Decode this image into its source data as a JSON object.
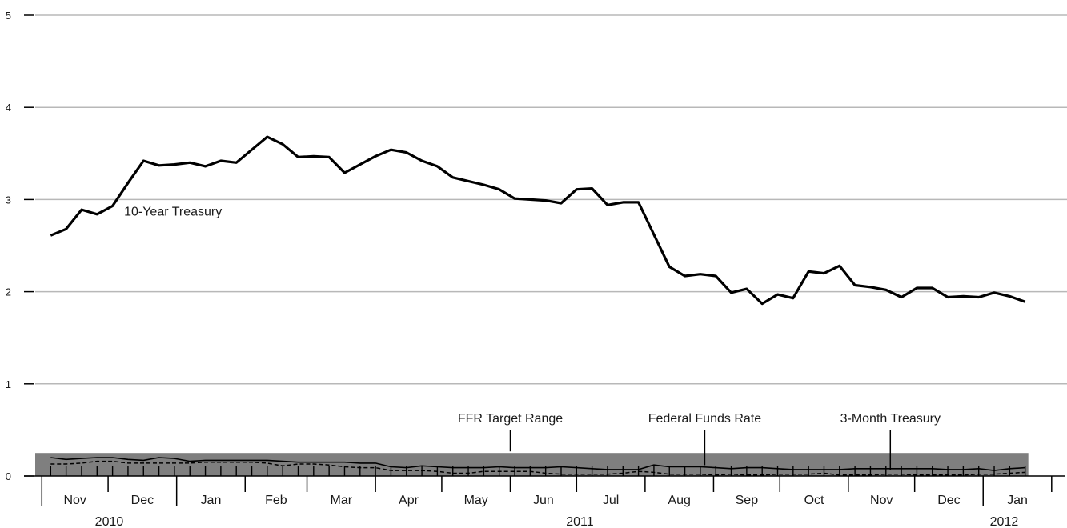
{
  "chart_data": {
    "type": "line",
    "title": "",
    "xlabel": "",
    "ylabel": "",
    "ylim": [
      0,
      5
    ],
    "yticks": [
      0,
      1,
      2,
      3,
      4,
      5
    ],
    "grid": true,
    "months": [
      {
        "label": "Nov",
        "year": 2010,
        "month": 11
      },
      {
        "label": "Dec",
        "year": 2010,
        "month": 12
      },
      {
        "label": "Jan",
        "year": 2011,
        "month": 1
      },
      {
        "label": "Feb",
        "year": 2011,
        "month": 2
      },
      {
        "label": "Mar",
        "year": 2011,
        "month": 3
      },
      {
        "label": "Apr",
        "year": 2011,
        "month": 4
      },
      {
        "label": "May",
        "year": 2011,
        "month": 5
      },
      {
        "label": "Jun",
        "year": 2011,
        "month": 6
      },
      {
        "label": "Jul",
        "year": 2011,
        "month": 7
      },
      {
        "label": "Aug",
        "year": 2011,
        "month": 8
      },
      {
        "label": "Sep",
        "year": 2011,
        "month": 9
      },
      {
        "label": "Oct",
        "year": 2011,
        "month": 10
      },
      {
        "label": "Nov",
        "year": 2011,
        "month": 11
      },
      {
        "label": "Dec",
        "year": 2011,
        "month": 12
      },
      {
        "label": "Jan",
        "year": 2012,
        "month": 1
      }
    ],
    "years": [
      {
        "label": "2010",
        "start": "2010-11-01",
        "end": "2011-01-01"
      },
      {
        "label": "2011",
        "start": "2011-01-01",
        "end": "2012-01-01"
      },
      {
        "label": "2012",
        "start": "2012-01-01",
        "end": "2012-01-20"
      }
    ],
    "x_range": [
      "2010-10-29",
      "2012-01-27"
    ],
    "target_range": {
      "name": "FFR Target Range",
      "low": 0,
      "high": 0.25,
      "start": "2010-10-29",
      "end": "2012-01-20",
      "color": "#7f7f7f"
    },
    "series": [
      {
        "name": "10-Year Treasury",
        "dates": [
          "2010-11-05",
          "2010-11-12",
          "2010-11-19",
          "2010-11-26",
          "2010-12-03",
          "2010-12-10",
          "2010-12-17",
          "2010-12-24",
          "2010-12-31",
          "2011-01-07",
          "2011-01-14",
          "2011-01-21",
          "2011-01-28",
          "2011-02-04",
          "2011-02-11",
          "2011-02-18",
          "2011-02-25",
          "2011-03-04",
          "2011-03-11",
          "2011-03-18",
          "2011-03-25",
          "2011-04-01",
          "2011-04-08",
          "2011-04-15",
          "2011-04-22",
          "2011-04-29",
          "2011-05-06",
          "2011-05-13",
          "2011-05-20",
          "2011-05-27",
          "2011-06-03",
          "2011-06-10",
          "2011-06-17",
          "2011-06-24",
          "2011-07-01",
          "2011-07-08",
          "2011-07-15",
          "2011-07-22",
          "2011-07-29",
          "2011-08-05",
          "2011-08-12",
          "2011-08-19",
          "2011-08-26",
          "2011-09-02",
          "2011-09-09",
          "2011-09-16",
          "2011-09-23",
          "2011-09-30",
          "2011-10-07",
          "2011-10-14",
          "2011-10-21",
          "2011-10-28",
          "2011-11-04",
          "2011-11-11",
          "2011-11-18",
          "2011-11-25",
          "2011-12-02",
          "2011-12-09",
          "2011-12-16",
          "2011-12-23",
          "2011-12-30",
          "2012-01-06",
          "2012-01-13",
          "2012-01-20"
        ],
        "values": [
          2.61,
          2.68,
          2.89,
          2.84,
          2.93,
          3.18,
          3.42,
          3.37,
          3.38,
          3.4,
          3.36,
          3.42,
          3.4,
          3.54,
          3.68,
          3.6,
          3.46,
          3.47,
          3.46,
          3.29,
          3.38,
          3.47,
          3.54,
          3.51,
          3.42,
          3.36,
          3.24,
          3.2,
          3.16,
          3.11,
          3.01,
          3.0,
          2.99,
          2.96,
          3.11,
          3.12,
          2.94,
          2.97,
          2.97,
          2.62,
          2.27,
          2.17,
          2.19,
          2.17,
          1.99,
          2.03,
          1.87,
          1.97,
          1.93,
          2.22,
          2.2,
          2.28,
          2.07,
          2.05,
          2.02,
          1.94,
          2.04,
          2.04,
          1.94,
          1.95,
          1.94,
          1.99,
          1.95,
          1.89
        ],
        "style": "solid-thick",
        "color": "#000000"
      },
      {
        "name": "Federal Funds Rate",
        "dates": [
          "2010-11-05",
          "2010-11-12",
          "2010-11-19",
          "2010-11-26",
          "2010-12-03",
          "2010-12-10",
          "2010-12-17",
          "2010-12-24",
          "2010-12-31",
          "2011-01-07",
          "2011-01-14",
          "2011-01-21",
          "2011-01-28",
          "2011-02-04",
          "2011-02-11",
          "2011-02-18",
          "2011-02-25",
          "2011-03-04",
          "2011-03-11",
          "2011-03-18",
          "2011-03-25",
          "2011-04-01",
          "2011-04-08",
          "2011-04-15",
          "2011-04-22",
          "2011-04-29",
          "2011-05-06",
          "2011-05-13",
          "2011-05-20",
          "2011-05-27",
          "2011-06-03",
          "2011-06-10",
          "2011-06-17",
          "2011-06-24",
          "2011-07-01",
          "2011-07-08",
          "2011-07-15",
          "2011-07-22",
          "2011-07-29",
          "2011-08-05",
          "2011-08-12",
          "2011-08-19",
          "2011-08-26",
          "2011-09-02",
          "2011-09-09",
          "2011-09-16",
          "2011-09-23",
          "2011-09-30",
          "2011-10-07",
          "2011-10-14",
          "2011-10-21",
          "2011-10-28",
          "2011-11-04",
          "2011-11-11",
          "2011-11-18",
          "2011-11-25",
          "2011-12-02",
          "2011-12-09",
          "2011-12-16",
          "2011-12-23",
          "2011-12-30",
          "2012-01-06",
          "2012-01-13",
          "2012-01-20"
        ],
        "values": [
          0.2,
          0.18,
          0.19,
          0.2,
          0.2,
          0.18,
          0.17,
          0.2,
          0.19,
          0.16,
          0.17,
          0.17,
          0.17,
          0.17,
          0.17,
          0.16,
          0.15,
          0.15,
          0.15,
          0.15,
          0.14,
          0.14,
          0.1,
          0.09,
          0.11,
          0.1,
          0.09,
          0.09,
          0.09,
          0.1,
          0.09,
          0.09,
          0.09,
          0.1,
          0.09,
          0.08,
          0.07,
          0.07,
          0.07,
          0.12,
          0.1,
          0.1,
          0.1,
          0.09,
          0.08,
          0.09,
          0.09,
          0.08,
          0.07,
          0.07,
          0.07,
          0.07,
          0.08,
          0.08,
          0.08,
          0.08,
          0.08,
          0.08,
          0.07,
          0.07,
          0.08,
          0.06,
          0.08,
          0.09
        ],
        "style": "solid-thin",
        "color": "#000000"
      },
      {
        "name": "3-Month Treasury",
        "dates": [
          "2010-11-05",
          "2010-11-12",
          "2010-11-19",
          "2010-11-26",
          "2010-12-03",
          "2010-12-10",
          "2010-12-17",
          "2010-12-24",
          "2010-12-31",
          "2011-01-07",
          "2011-01-14",
          "2011-01-21",
          "2011-01-28",
          "2011-02-04",
          "2011-02-11",
          "2011-02-18",
          "2011-02-25",
          "2011-03-04",
          "2011-03-11",
          "2011-03-18",
          "2011-03-25",
          "2011-04-01",
          "2011-04-08",
          "2011-04-15",
          "2011-04-22",
          "2011-04-29",
          "2011-05-06",
          "2011-05-13",
          "2011-05-20",
          "2011-05-27",
          "2011-06-03",
          "2011-06-10",
          "2011-06-17",
          "2011-06-24",
          "2011-07-01",
          "2011-07-08",
          "2011-07-15",
          "2011-07-22",
          "2011-07-29",
          "2011-08-05",
          "2011-08-12",
          "2011-08-19",
          "2011-08-26",
          "2011-09-02",
          "2011-09-09",
          "2011-09-16",
          "2011-09-23",
          "2011-09-30",
          "2011-10-07",
          "2011-10-14",
          "2011-10-21",
          "2011-10-28",
          "2011-11-04",
          "2011-11-11",
          "2011-11-18",
          "2011-11-25",
          "2011-12-02",
          "2011-12-09",
          "2011-12-16",
          "2011-12-23",
          "2011-12-30",
          "2012-01-06",
          "2012-01-13",
          "2012-01-20"
        ],
        "values": [
          0.13,
          0.13,
          0.14,
          0.16,
          0.16,
          0.14,
          0.14,
          0.14,
          0.14,
          0.14,
          0.15,
          0.15,
          0.15,
          0.15,
          0.14,
          0.11,
          0.13,
          0.13,
          0.12,
          0.1,
          0.09,
          0.09,
          0.06,
          0.06,
          0.06,
          0.05,
          0.03,
          0.03,
          0.05,
          0.05,
          0.05,
          0.05,
          0.03,
          0.02,
          0.02,
          0.02,
          0.02,
          0.03,
          0.05,
          0.04,
          0.02,
          0.02,
          0.02,
          0.01,
          0.02,
          0.01,
          0.01,
          0.02,
          0.02,
          0.02,
          0.03,
          0.01,
          0.01,
          0.01,
          0.02,
          0.02,
          0.01,
          0.01,
          0.01,
          0.01,
          0.02,
          0.02,
          0.03,
          0.04
        ],
        "style": "dashed",
        "color": "#000000"
      }
    ],
    "annotations": [
      {
        "text": "10-Year Treasury",
        "series": "10-Year Treasury",
        "date": "2010-12-01",
        "value": 2.85,
        "pointer": false
      },
      {
        "text": "FFR Target Range",
        "series": "FFR Target Range",
        "date": "2011-06-01",
        "value": 0.25,
        "pointer": true
      },
      {
        "text": "Federal Funds Rate",
        "series": "Federal Funds Rate",
        "date": "2011-08-28",
        "value": 0.1,
        "pointer": true
      },
      {
        "text": "3-Month Treasury",
        "series": "3-Month Treasury",
        "date": "2011-11-20",
        "value": 0.05,
        "pointer": true
      }
    ]
  }
}
